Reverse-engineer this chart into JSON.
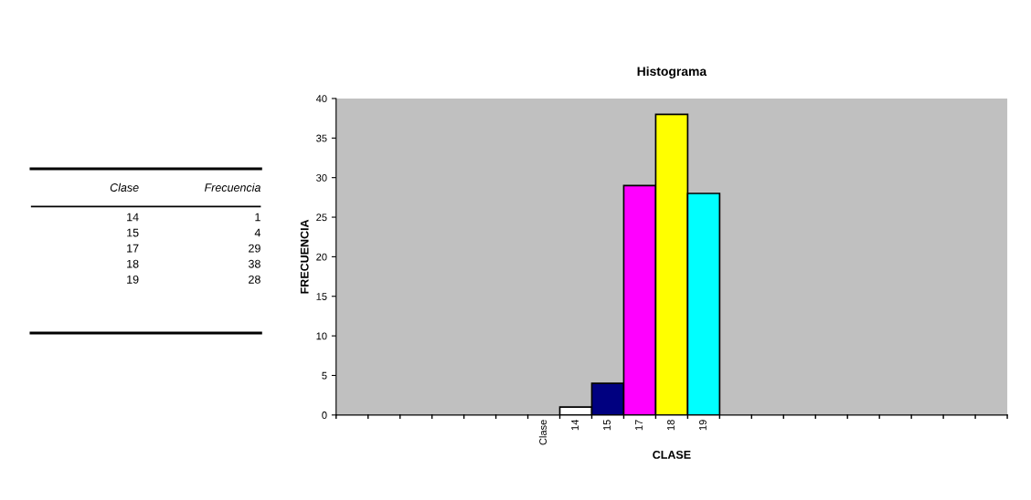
{
  "chart_data": [
    {
      "type": "other",
      "annotations": [
        "Clase",
        "Frecuencia",
        "14",
        "1",
        "15",
        "4",
        "17",
        "29",
        "18",
        "38",
        "19",
        "28"
      ]
    },
    {
      "type": "bar",
      "title": "Histograma",
      "xlabel": "CLASE",
      "ylabel": "FRECUENCIA",
      "categories": [
        null,
        null,
        null,
        null,
        null,
        null,
        "Clase",
        "14",
        "15",
        "17",
        "18",
        "19",
        null,
        null,
        null,
        null,
        null,
        null,
        null,
        null,
        null
      ],
      "values": [
        null,
        null,
        null,
        null,
        null,
        null,
        null,
        1,
        4,
        29,
        38,
        28,
        null,
        null,
        null,
        null,
        null,
        null,
        null,
        null,
        null
      ],
      "colors": [
        null,
        null,
        null,
        null,
        null,
        null,
        null,
        "#ffffff",
        "#000080",
        "#ff00ff",
        "#ffff00",
        "#00ffff",
        null,
        null,
        null,
        null,
        null,
        null,
        null,
        null,
        null
      ],
      "ylim": [
        0,
        40
      ],
      "yticks": [
        0,
        5,
        10,
        15,
        20,
        25,
        30,
        35,
        40
      ],
      "grid": false
    }
  ]
}
